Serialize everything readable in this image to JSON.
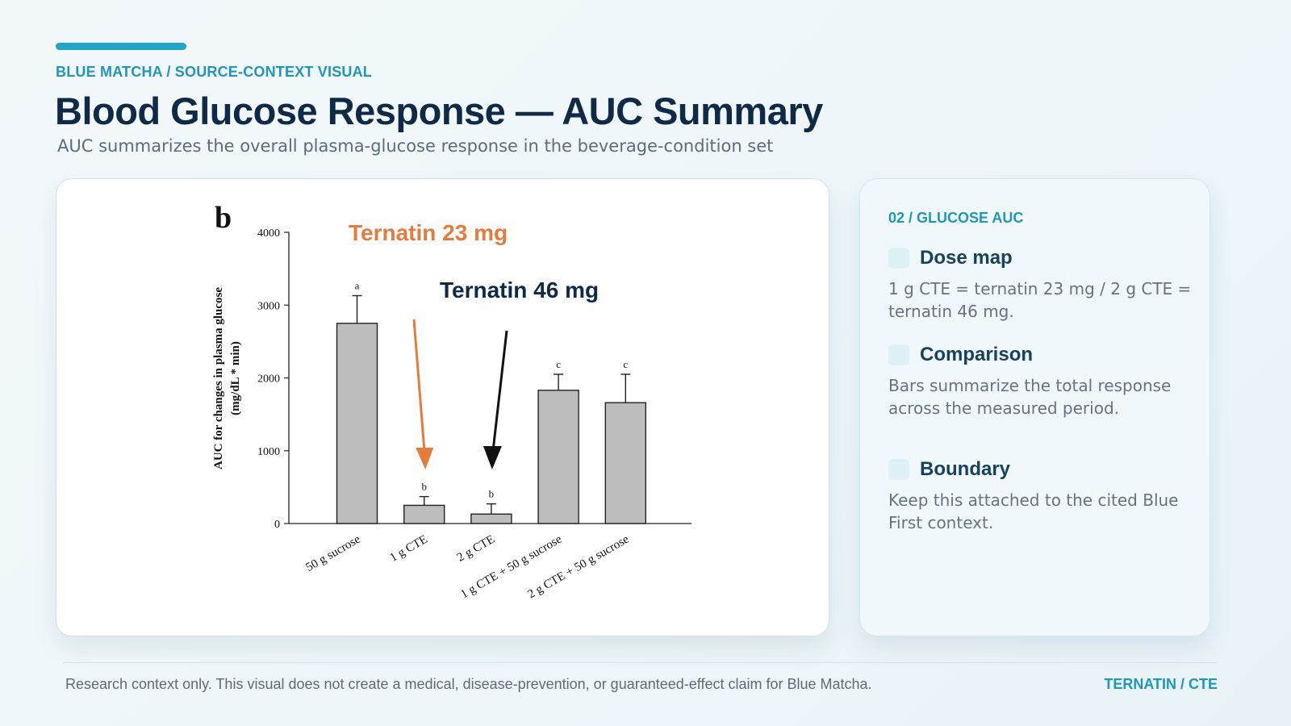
{
  "header": {
    "eyebrow": "BLUE MATCHA / SOURCE-CONTEXT VISUAL",
    "title": "Blood Glucose Response — AUC Summary",
    "subtitle": "AUC summarizes the overall plasma-glucose response in the beverage-condition set"
  },
  "side_panel": {
    "kicker": "02 / GLUCOSE AUC",
    "items": [
      {
        "title": "Dose map",
        "text": "1 g CTE = ternatin 23 mg / 2 g CTE = ternatin 46 mg."
      },
      {
        "title": "Comparison",
        "text": "Bars summarize the total response across the measured period."
      },
      {
        "title": "Boundary",
        "text": "Keep this attached to the cited Blue First context."
      }
    ]
  },
  "footer": {
    "note": "Research context only. This visual does not create a medical, disease-prevention, or guaranteed-effect claim for Blue Matcha.",
    "tag": "TERNATIN / CTE"
  },
  "colors": {
    "accent": "#22a5c9",
    "bar_fill": "#bdbdbd",
    "annotation_orange": "#e47c3e",
    "annotation_dark": "#0e2a47"
  },
  "chart_data": {
    "type": "bar",
    "panel_label": "b",
    "categories": [
      "50 g sucrose",
      "1 g CTE",
      "2 g CTE",
      "1 g CTE + 50 g sucrose",
      "2 g CTE + 50 g sucrose"
    ],
    "values": [
      2750,
      250,
      130,
      1830,
      1660
    ],
    "errors": [
      380,
      120,
      140,
      220,
      390
    ],
    "significance_letters": [
      "a",
      "b",
      "b",
      "c",
      "c"
    ],
    "ylabel_line1": "AUC for changes in plasma glucose",
    "ylabel_line2": "(mg/dL * min)",
    "xlabel": "",
    "ylim": [
      0,
      4000
    ],
    "yticks": [
      0,
      1000,
      2000,
      3000,
      4000
    ],
    "annotations": [
      {
        "text": "Ternatin 23 mg",
        "color": "#e47c3e",
        "target_category": "1 g CTE"
      },
      {
        "text": "Ternatin 46 mg",
        "color": "#0e2a47",
        "target_category": "2 g CTE"
      }
    ]
  }
}
